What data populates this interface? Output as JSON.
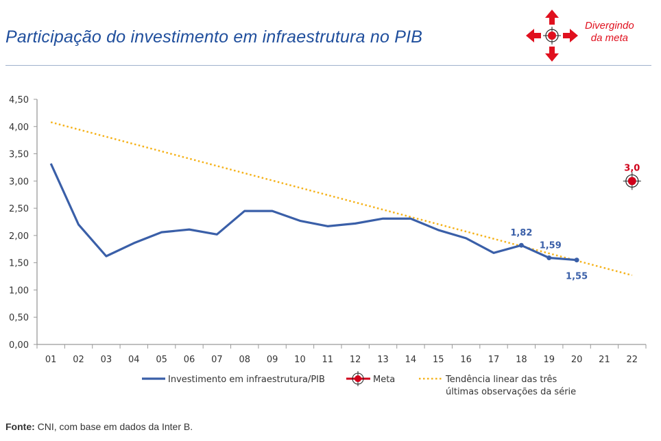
{
  "header": {
    "title": "Participação do investimento em infraestrutura no PIB",
    "status_line1": "Divergindo",
    "status_line2": "da meta",
    "status_icon": "target-with-diverging-arrows-icon",
    "status_color": "#e0101e"
  },
  "source": {
    "label": "Fonte:",
    "text": " CNI, com base em dados da Inter B."
  },
  "chart_data": {
    "type": "line",
    "title": "Participação do investimento em infraestrutura no PIB",
    "categories": [
      "01",
      "02",
      "03",
      "04",
      "05",
      "06",
      "07",
      "08",
      "09",
      "10",
      "11",
      "12",
      "13",
      "14",
      "15",
      "16",
      "17",
      "18",
      "19",
      "20",
      "21",
      "22"
    ],
    "ylim": [
      0,
      4.5
    ],
    "yticks": [
      "0,00",
      "0,50",
      "1,00",
      "1,50",
      "2,00",
      "2,50",
      "3,00",
      "3,50",
      "4,00",
      "4,50"
    ],
    "grid": false,
    "legend_placement": "bottom",
    "series": [
      {
        "name": "Investimento em infraestrutura/PIB",
        "color": "#3a5fa8",
        "values": [
          3.32,
          2.2,
          1.62,
          1.86,
          2.06,
          2.11,
          2.02,
          2.45,
          2.45,
          2.27,
          2.17,
          2.22,
          2.31,
          2.31,
          2.1,
          1.95,
          1.68,
          1.82,
          1.59,
          1.55,
          null,
          null
        ],
        "data_labels": {
          "18": "1,82",
          "19": "1,59",
          "20": "1,55"
        }
      },
      {
        "name": "Meta",
        "color": "#d0021b",
        "x": "22",
        "value": 3.0,
        "data_label": "3,0"
      },
      {
        "name_line1": "Tendência linear das três",
        "name_line2": "últimas observações da série",
        "color": "#f5b21a",
        "start": {
          "x": "01",
          "value": 4.08
        },
        "end": {
          "x": "22",
          "value": 1.27
        }
      }
    ]
  }
}
